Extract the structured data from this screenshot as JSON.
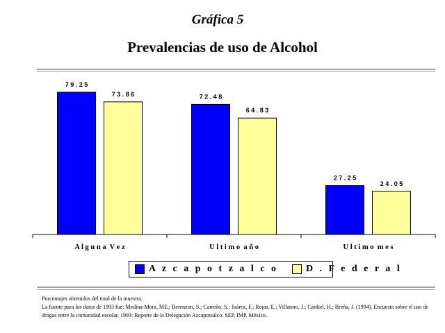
{
  "header": {
    "kicker": "Gráfica 5",
    "title": "Prevalencias de uso de Alcohol"
  },
  "colors": {
    "azcapotzalco": "#0000ff",
    "federal": "#ffff99",
    "rules": "#a0a0a0"
  },
  "chart_data": {
    "type": "bar",
    "categories": [
      "A l g u n a  V e z",
      "U l t i m o  a ñ o",
      "U l t i m o  m e s"
    ],
    "series": [
      {
        "name": "A z c a p o t z a l c o",
        "values": [
          79.25,
          72.48,
          27.25
        ],
        "labels": [
          "7 9 . 2 5",
          "7 2 . 4 8",
          "2 7 . 2 5"
        ],
        "color": "#0000ff"
      },
      {
        "name": "D .  F e d e r a l",
        "values": [
          73.86,
          64.83,
          24.05
        ],
        "labels": [
          "7 3 . 8 6",
          "6 4 . 8 3",
          "2 4 . 0 5"
        ],
        "color": "#ffff99"
      }
    ],
    "ylim": [
      0,
      85
    ],
    "grid": false,
    "legend": "bottom"
  },
  "notes": [
    "Porcentajes obtenidos del total de la muestra.",
    "La fuente para los datos de 1993 fue: Medina-Mora, ME,; Berenzon, S.; Carreño, S.; Juárez, F.; Rojas, E.; Villatoro, J.; Cardiel, H.; Breña, J. (1994). Encuesta sobre el uso de drogas entre la comunidad escolar, 1993: Reporte de la Delegación Azcapotzalco. SEP, IMP. México."
  ]
}
